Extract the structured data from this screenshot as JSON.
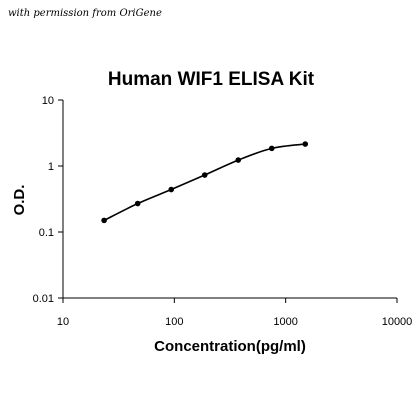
{
  "credit": "with permission from OriGene",
  "chart_data": {
    "type": "scatter",
    "title": "Human WIF1 ELISA Kit",
    "xlabel": "Concentration(pg/ml)",
    "ylabel": "O.D.",
    "x_scale": "log",
    "y_scale": "log",
    "xlim": [
      10,
      10000
    ],
    "ylim": [
      0.01,
      10
    ],
    "x_ticks": [
      "10",
      "100",
      "1000",
      "10000"
    ],
    "y_ticks": [
      "0.01",
      "0.1",
      "1",
      "10"
    ],
    "grid": false,
    "legend": "none",
    "trendline": true,
    "series": [
      {
        "x": [
          23.4,
          46.9,
          93.8,
          187.5,
          375,
          750,
          1500
        ],
        "y": [
          0.15,
          0.27,
          0.44,
          0.73,
          1.23,
          1.85,
          2.15
        ]
      }
    ],
    "colors": {
      "points": "#000000",
      "line": "#000000",
      "axes": "#000000"
    }
  }
}
